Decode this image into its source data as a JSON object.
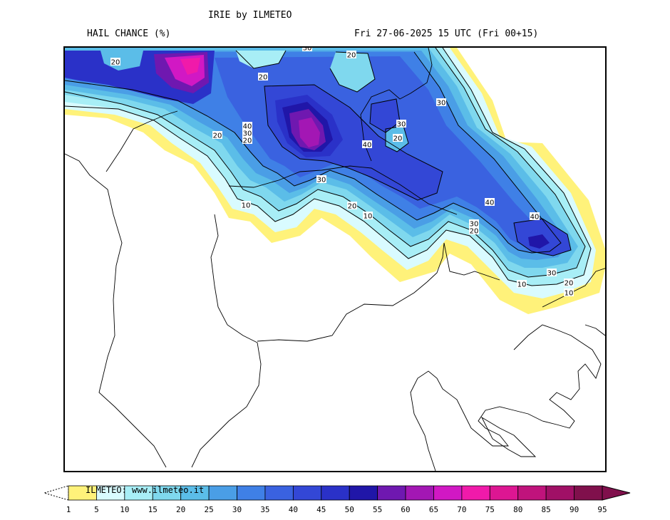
{
  "header": {
    "model_title": "IRIE by ILMETEO",
    "field_title": "HAIL CHANCE (%)",
    "valid_time": "Fri 27-06-2025 15 UTC (Fri 00+15)"
  },
  "watermark": "ILMETEO: www.ilmeteo.it",
  "contour_labels": [
    "30",
    "20",
    "20",
    "20",
    "30",
    "40",
    "30",
    "20",
    "20",
    "30",
    "20",
    "40",
    "10",
    "30",
    "20",
    "10",
    "40",
    "30",
    "20",
    "40",
    "30",
    "20",
    "10",
    "10"
  ],
  "legend": {
    "ticks": [
      "1",
      "5",
      "10",
      "15",
      "20",
      "25",
      "30",
      "35",
      "40",
      "45",
      "50",
      "55",
      "60",
      "65",
      "70",
      "75",
      "80",
      "85",
      "90",
      "95"
    ],
    "colors": [
      "#fff27a",
      "#d9fbff",
      "#a8eef6",
      "#7fd8ee",
      "#5bbde8",
      "#4a9ee6",
      "#3f80e6",
      "#3a62e0",
      "#3347d6",
      "#2a31c8",
      "#2016a8",
      "#6f18b0",
      "#a317b4",
      "#d118c4",
      "#f01aaa",
      "#dd1692",
      "#c0137c",
      "#a01066",
      "#80104c"
    ],
    "overflow_color": "#80104c"
  }
}
